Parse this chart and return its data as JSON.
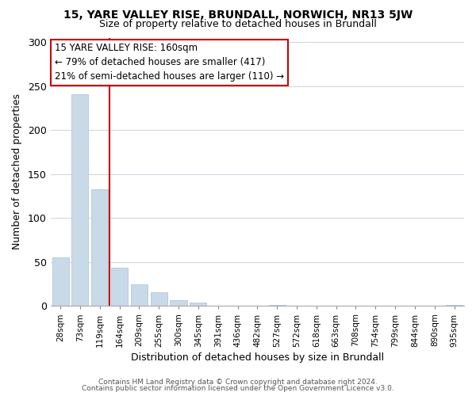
{
  "title_line1": "15, YARE VALLEY RISE, BRUNDALL, NORWICH, NR13 5JW",
  "title_line2": "Size of property relative to detached houses in Brundall",
  "xlabel": "Distribution of detached houses by size in Brundall",
  "ylabel": "Number of detached properties",
  "bar_labels": [
    "28sqm",
    "73sqm",
    "119sqm",
    "164sqm",
    "209sqm",
    "255sqm",
    "300sqm",
    "345sqm",
    "391sqm",
    "436sqm",
    "482sqm",
    "527sqm",
    "572sqm",
    "618sqm",
    "663sqm",
    "708sqm",
    "754sqm",
    "799sqm",
    "844sqm",
    "890sqm",
    "935sqm"
  ],
  "bar_values": [
    55,
    241,
    133,
    44,
    25,
    16,
    7,
    4,
    0,
    0,
    0,
    1,
    0,
    0,
    0,
    0,
    0,
    0,
    0,
    0,
    1
  ],
  "bar_color": "#c8d9e8",
  "vline_x": 2.5,
  "vline_color": "#cc0000",
  "annotation_box_text": "15 YARE VALLEY RISE: 160sqm\n← 79% of detached houses are smaller (417)\n21% of semi-detached houses are larger (110) →",
  "ylim": [
    0,
    305
  ],
  "yticks": [
    0,
    50,
    100,
    150,
    200,
    250,
    300
  ],
  "footer_line1": "Contains HM Land Registry data © Crown copyright and database right 2024.",
  "footer_line2": "Contains public sector information licensed under the Open Government Licence v3.0.",
  "background_color": "#ffffff",
  "grid_color": "#d0d8e0"
}
